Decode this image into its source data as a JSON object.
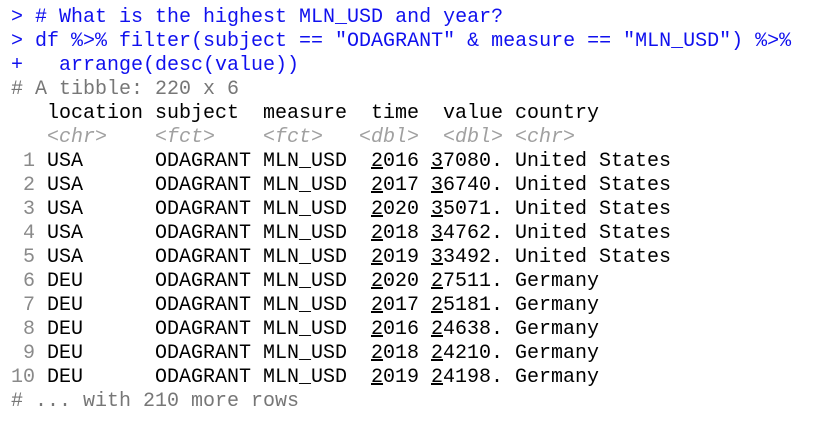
{
  "console": {
    "input_lines": [
      "> # What is the highest MLN_USD and year?",
      "> df %>% filter(subject == \"ODAGRANT\" & measure == \"MLN_USD\") %>%",
      "+   arrange(desc(value))"
    ],
    "tibble_header": "# A tibble: 220 x 6",
    "columns": [
      "location",
      "subject",
      "measure",
      "time",
      "value",
      "country"
    ],
    "types": [
      "<chr>",
      "<fct>",
      "<fct>",
      "<dbl>",
      "<dbl>",
      "<chr>"
    ],
    "rows": [
      [
        "1",
        "USA",
        "ODAGRANT",
        "MLN_USD",
        "2016",
        "37080.",
        "United States"
      ],
      [
        "2",
        "USA",
        "ODAGRANT",
        "MLN_USD",
        "2017",
        "36740.",
        "United States"
      ],
      [
        "3",
        "USA",
        "ODAGRANT",
        "MLN_USD",
        "2020",
        "35071.",
        "United States"
      ],
      [
        "4",
        "USA",
        "ODAGRANT",
        "MLN_USD",
        "2018",
        "34762.",
        "United States"
      ],
      [
        "5",
        "USA",
        "ODAGRANT",
        "MLN_USD",
        "2019",
        "33492.",
        "United States"
      ],
      [
        "6",
        "DEU",
        "ODAGRANT",
        "MLN_USD",
        "2020",
        "27511.",
        "Germany"
      ],
      [
        "7",
        "DEU",
        "ODAGRANT",
        "MLN_USD",
        "2017",
        "25181.",
        "Germany"
      ],
      [
        "8",
        "DEU",
        "ODAGRANT",
        "MLN_USD",
        "2016",
        "24638.",
        "Germany"
      ],
      [
        "9",
        "DEU",
        "ODAGRANT",
        "MLN_USD",
        "2018",
        "24210.",
        "Germany"
      ],
      [
        "10",
        "DEU",
        "ODAGRANT",
        "MLN_USD",
        "2019",
        "24198.",
        "Germany"
      ]
    ],
    "footer": "# ... with 210 more rows"
  }
}
